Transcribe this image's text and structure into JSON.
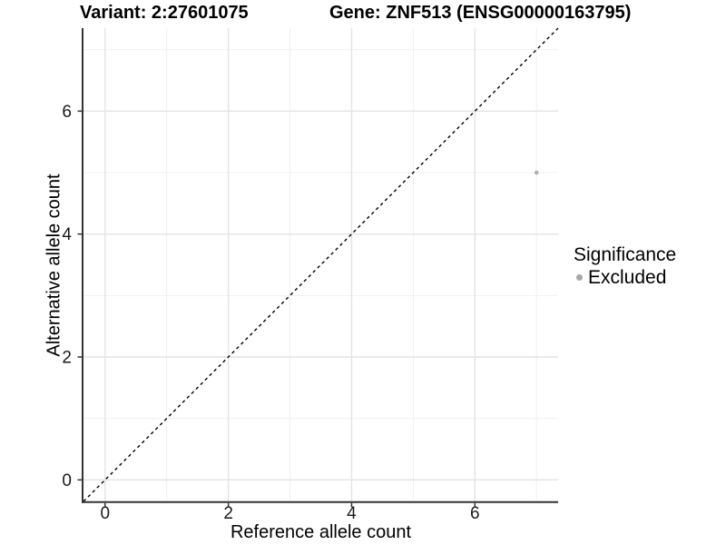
{
  "header": {
    "variant_title": "Variant: 2:27601075",
    "gene_title": "Gene: ZNF513 (ENSG00000163795)"
  },
  "chart_data": {
    "type": "scatter",
    "xlabel": "Reference allele count",
    "ylabel": "Alternative allele count",
    "xlim": [
      -0.35,
      7.35
    ],
    "ylim": [
      -0.35,
      7.35
    ],
    "x_ticks": [
      0,
      2,
      4,
      6
    ],
    "y_ticks": [
      0,
      2,
      4,
      6
    ],
    "x_minor_gridlines": [
      1,
      3,
      5,
      7
    ],
    "y_minor_gridlines": [
      1,
      3,
      5,
      7
    ],
    "grid": "major+minor",
    "identity_line": {
      "style": "dashed",
      "x1": -0.35,
      "y1": -0.35,
      "x2": 7.35,
      "y2": 7.35,
      "color": "#000000"
    },
    "series": [
      {
        "name": "Excluded",
        "color": "#b0b0b0",
        "marker": "circle",
        "points": [
          {
            "x": 7,
            "y": 5
          }
        ]
      }
    ],
    "legend": {
      "title": "Significance",
      "position": "right",
      "items": [
        {
          "label": "Excluded",
          "color": "#a8a8a8",
          "marker": "circle"
        }
      ]
    }
  },
  "colors": {
    "background": "#ffffff",
    "grid_major": "#e3e3e3",
    "grid_minor": "#f0f0f0",
    "axis_line": "#333333",
    "tick_text": "#1a1a1a",
    "title_text": "#000000"
  }
}
